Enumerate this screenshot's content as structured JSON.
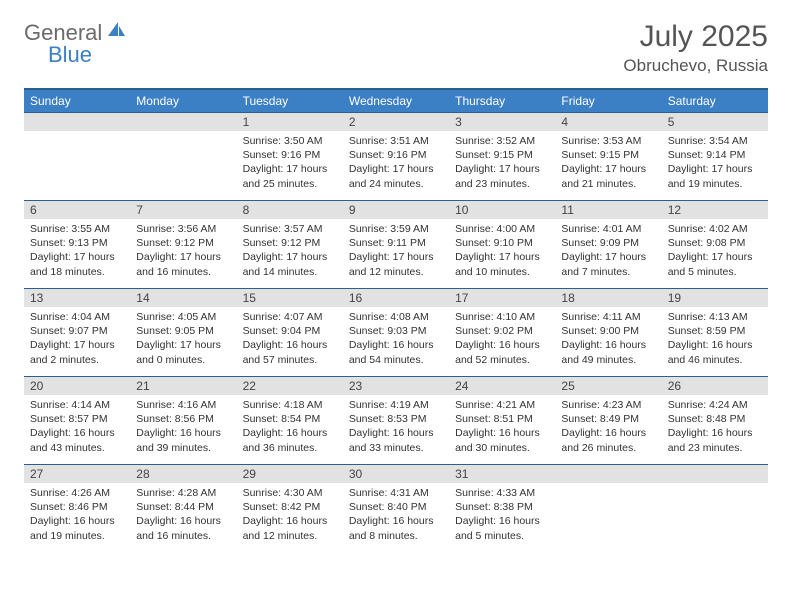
{
  "brand": {
    "part1": "General",
    "part2": "Blue"
  },
  "title": "July 2025",
  "location": "Obruchevo, Russia",
  "colors": {
    "header_bg": "#3b7fc4",
    "header_border": "#2e5e8f",
    "daynum_bg": "#e2e2e2",
    "text_muted": "#555555",
    "text_body": "#333333"
  },
  "weekdays": [
    "Sunday",
    "Monday",
    "Tuesday",
    "Wednesday",
    "Thursday",
    "Friday",
    "Saturday"
  ],
  "leading_blanks": 2,
  "days": [
    {
      "n": "1",
      "sr": "3:50 AM",
      "ss": "9:16 PM",
      "dl": "17 hours and 25 minutes."
    },
    {
      "n": "2",
      "sr": "3:51 AM",
      "ss": "9:16 PM",
      "dl": "17 hours and 24 minutes."
    },
    {
      "n": "3",
      "sr": "3:52 AM",
      "ss": "9:15 PM",
      "dl": "17 hours and 23 minutes."
    },
    {
      "n": "4",
      "sr": "3:53 AM",
      "ss": "9:15 PM",
      "dl": "17 hours and 21 minutes."
    },
    {
      "n": "5",
      "sr": "3:54 AM",
      "ss": "9:14 PM",
      "dl": "17 hours and 19 minutes."
    },
    {
      "n": "6",
      "sr": "3:55 AM",
      "ss": "9:13 PM",
      "dl": "17 hours and 18 minutes."
    },
    {
      "n": "7",
      "sr": "3:56 AM",
      "ss": "9:12 PM",
      "dl": "17 hours and 16 minutes."
    },
    {
      "n": "8",
      "sr": "3:57 AM",
      "ss": "9:12 PM",
      "dl": "17 hours and 14 minutes."
    },
    {
      "n": "9",
      "sr": "3:59 AM",
      "ss": "9:11 PM",
      "dl": "17 hours and 12 minutes."
    },
    {
      "n": "10",
      "sr": "4:00 AM",
      "ss": "9:10 PM",
      "dl": "17 hours and 10 minutes."
    },
    {
      "n": "11",
      "sr": "4:01 AM",
      "ss": "9:09 PM",
      "dl": "17 hours and 7 minutes."
    },
    {
      "n": "12",
      "sr": "4:02 AM",
      "ss": "9:08 PM",
      "dl": "17 hours and 5 minutes."
    },
    {
      "n": "13",
      "sr": "4:04 AM",
      "ss": "9:07 PM",
      "dl": "17 hours and 2 minutes."
    },
    {
      "n": "14",
      "sr": "4:05 AM",
      "ss": "9:05 PM",
      "dl": "17 hours and 0 minutes."
    },
    {
      "n": "15",
      "sr": "4:07 AM",
      "ss": "9:04 PM",
      "dl": "16 hours and 57 minutes."
    },
    {
      "n": "16",
      "sr": "4:08 AM",
      "ss": "9:03 PM",
      "dl": "16 hours and 54 minutes."
    },
    {
      "n": "17",
      "sr": "4:10 AM",
      "ss": "9:02 PM",
      "dl": "16 hours and 52 minutes."
    },
    {
      "n": "18",
      "sr": "4:11 AM",
      "ss": "9:00 PM",
      "dl": "16 hours and 49 minutes."
    },
    {
      "n": "19",
      "sr": "4:13 AM",
      "ss": "8:59 PM",
      "dl": "16 hours and 46 minutes."
    },
    {
      "n": "20",
      "sr": "4:14 AM",
      "ss": "8:57 PM",
      "dl": "16 hours and 43 minutes."
    },
    {
      "n": "21",
      "sr": "4:16 AM",
      "ss": "8:56 PM",
      "dl": "16 hours and 39 minutes."
    },
    {
      "n": "22",
      "sr": "4:18 AM",
      "ss": "8:54 PM",
      "dl": "16 hours and 36 minutes."
    },
    {
      "n": "23",
      "sr": "4:19 AM",
      "ss": "8:53 PM",
      "dl": "16 hours and 33 minutes."
    },
    {
      "n": "24",
      "sr": "4:21 AM",
      "ss": "8:51 PM",
      "dl": "16 hours and 30 minutes."
    },
    {
      "n": "25",
      "sr": "4:23 AM",
      "ss": "8:49 PM",
      "dl": "16 hours and 26 minutes."
    },
    {
      "n": "26",
      "sr": "4:24 AM",
      "ss": "8:48 PM",
      "dl": "16 hours and 23 minutes."
    },
    {
      "n": "27",
      "sr": "4:26 AM",
      "ss": "8:46 PM",
      "dl": "16 hours and 19 minutes."
    },
    {
      "n": "28",
      "sr": "4:28 AM",
      "ss": "8:44 PM",
      "dl": "16 hours and 16 minutes."
    },
    {
      "n": "29",
      "sr": "4:30 AM",
      "ss": "8:42 PM",
      "dl": "16 hours and 12 minutes."
    },
    {
      "n": "30",
      "sr": "4:31 AM",
      "ss": "8:40 PM",
      "dl": "16 hours and 8 minutes."
    },
    {
      "n": "31",
      "sr": "4:33 AM",
      "ss": "8:38 PM",
      "dl": "16 hours and 5 minutes."
    }
  ],
  "labels": {
    "sunrise": "Sunrise:",
    "sunset": "Sunset:",
    "daylight": "Daylight:"
  }
}
